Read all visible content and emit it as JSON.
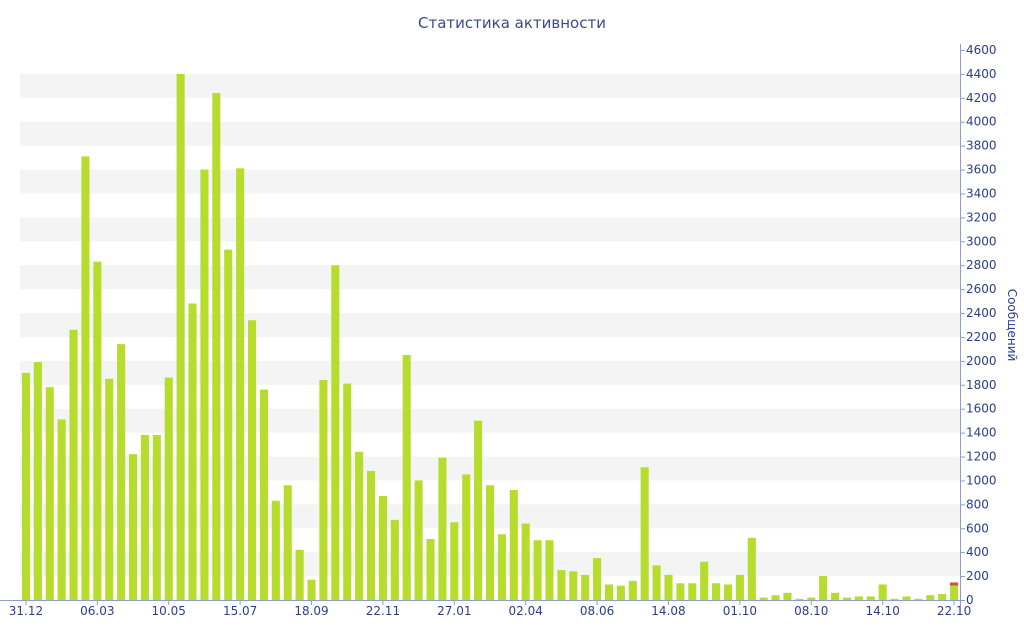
{
  "chart_data": {
    "type": "bar",
    "title": "Статистика активности",
    "xlabel": "",
    "ylabel": "Сообщений",
    "ylim": [
      0,
      4600
    ],
    "y_ticks": [
      0,
      200,
      400,
      600,
      800,
      1000,
      1200,
      1400,
      1600,
      1800,
      2000,
      2200,
      2400,
      2600,
      2800,
      3000,
      3200,
      3400,
      3600,
      3800,
      4000,
      4200,
      4400,
      4600
    ],
    "x_tick_labels": [
      {
        "label": "31.12",
        "index": 0
      },
      {
        "label": "06.03",
        "index": 6
      },
      {
        "label": "10.05",
        "index": 12
      },
      {
        "label": "15.07",
        "index": 18
      },
      {
        "label": "18.09",
        "index": 24
      },
      {
        "label": "22.11",
        "index": 30
      },
      {
        "label": "27.01",
        "index": 36
      },
      {
        "label": "02.04",
        "index": 42
      },
      {
        "label": "08.06",
        "index": 48
      },
      {
        "label": "14.08",
        "index": 54
      },
      {
        "label": "01.10",
        "index": 60
      },
      {
        "label": "08.10",
        "index": 66
      },
      {
        "label": "14.10",
        "index": 72
      },
      {
        "label": "22.10",
        "index": 78
      }
    ],
    "grid": "horizontal-bands",
    "y_axis_position": "right",
    "bar_color": "#b6dd2e",
    "highlight_color": "#c8553d",
    "values": [
      1900,
      1990,
      1780,
      1510,
      2260,
      3710,
      2830,
      1850,
      2140,
      1220,
      1380,
      1380,
      1860,
      4400,
      2480,
      3600,
      4240,
      2930,
      3610,
      2340,
      1760,
      830,
      960,
      420,
      170,
      1840,
      2800,
      1810,
      1240,
      1080,
      870,
      670,
      2050,
      1000,
      510,
      1190,
      650,
      1050,
      1500,
      960,
      550,
      920,
      640,
      500,
      500,
      250,
      240,
      210,
      350,
      130,
      120,
      160,
      1110,
      290,
      210,
      140,
      140,
      320,
      140,
      130,
      210,
      520,
      20,
      40,
      60,
      10,
      20,
      200,
      60,
      20,
      30,
      30,
      130,
      10,
      30,
      10,
      40,
      50,
      130
    ]
  }
}
